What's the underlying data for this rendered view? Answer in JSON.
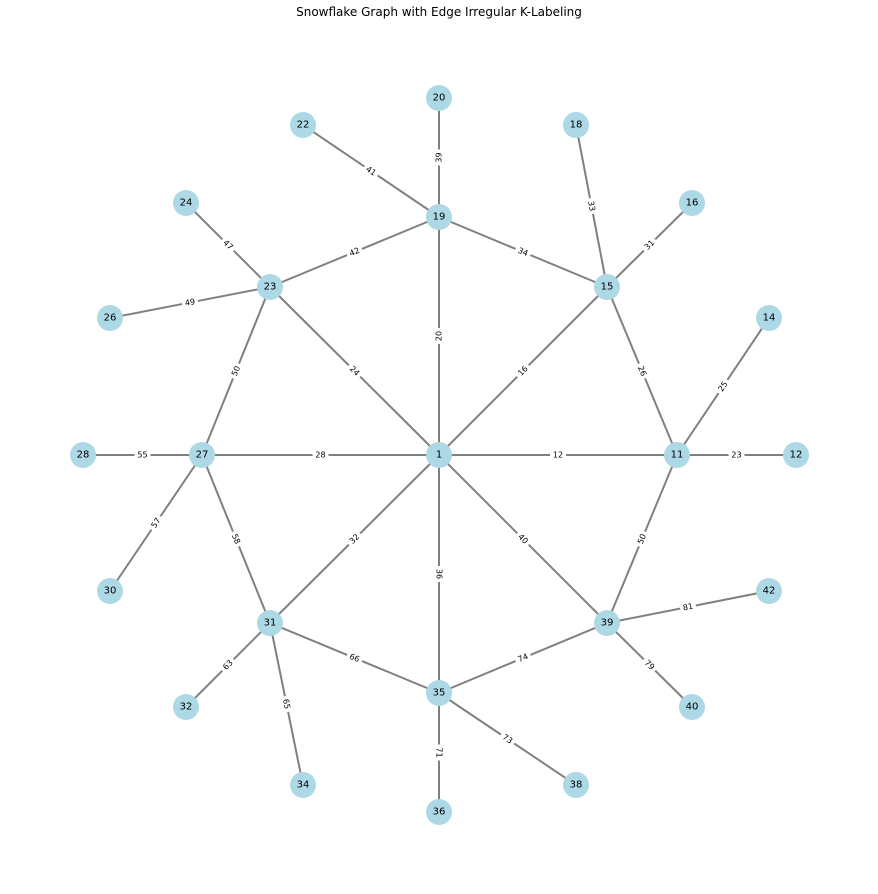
{
  "title": "Snowflake Graph with Edge Irregular K-Labeling",
  "colors": {
    "node": "#add8e6",
    "edge": "#808080",
    "label": "#000000"
  },
  "nodes": [
    "1",
    "11",
    "12",
    "14",
    "15",
    "16",
    "18",
    "19",
    "20",
    "22",
    "23",
    "24",
    "26",
    "27",
    "28",
    "30",
    "31",
    "32",
    "34",
    "35",
    "36",
    "38",
    "39",
    "40",
    "42"
  ],
  "edges": [
    {
      "from": "1",
      "to": "11",
      "label": "12"
    },
    {
      "from": "1",
      "to": "15",
      "label": "16"
    },
    {
      "from": "1",
      "to": "19",
      "label": "20"
    },
    {
      "from": "1",
      "to": "23",
      "label": "24"
    },
    {
      "from": "1",
      "to": "27",
      "label": "28"
    },
    {
      "from": "1",
      "to": "31",
      "label": "32"
    },
    {
      "from": "1",
      "to": "35",
      "label": "36"
    },
    {
      "from": "1",
      "to": "39",
      "label": "40"
    },
    {
      "from": "11",
      "to": "12",
      "label": "23"
    },
    {
      "from": "11",
      "to": "14",
      "label": "25"
    },
    {
      "from": "11",
      "to": "15",
      "label": "26"
    },
    {
      "from": "11",
      "to": "39",
      "label": "50"
    },
    {
      "from": "15",
      "to": "16",
      "label": "31"
    },
    {
      "from": "15",
      "to": "18",
      "label": "33"
    },
    {
      "from": "15",
      "to": "19",
      "label": "34"
    },
    {
      "from": "19",
      "to": "20",
      "label": "39"
    },
    {
      "from": "19",
      "to": "22",
      "label": "41"
    },
    {
      "from": "19",
      "to": "23",
      "label": "42"
    },
    {
      "from": "23",
      "to": "24",
      "label": "47"
    },
    {
      "from": "23",
      "to": "26",
      "label": "49"
    },
    {
      "from": "23",
      "to": "27",
      "label": "50"
    },
    {
      "from": "27",
      "to": "28",
      "label": "55"
    },
    {
      "from": "27",
      "to": "30",
      "label": "57"
    },
    {
      "from": "27",
      "to": "31",
      "label": "58"
    },
    {
      "from": "31",
      "to": "32",
      "label": "63"
    },
    {
      "from": "31",
      "to": "34",
      "label": "65"
    },
    {
      "from": "31",
      "to": "35",
      "label": "66"
    },
    {
      "from": "35",
      "to": "36",
      "label": "71"
    },
    {
      "from": "35",
      "to": "38",
      "label": "73"
    },
    {
      "from": "35",
      "to": "39",
      "label": "74"
    },
    {
      "from": "39",
      "to": "40",
      "label": "79"
    },
    {
      "from": "39",
      "to": "42",
      "label": "81"
    }
  ]
}
